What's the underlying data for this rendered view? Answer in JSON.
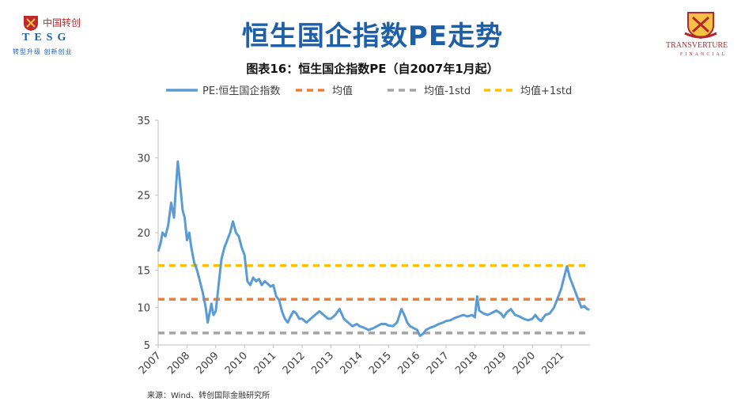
{
  "header": {
    "slide_title": "恒生国企指数PE走势",
    "chart_title": "图表16：恒生国企指数PE（自2007年1月起）",
    "title_color": "#1f5fa8"
  },
  "logos": {
    "left": {
      "cn": "中国转创",
      "en": "TESG",
      "slogan": "转型升级 创新创业"
    },
    "right": {
      "name": "TRANSVERTURE",
      "sub": "FINANCIAL"
    }
  },
  "source": "来源：Wind、转创国际金融研究所",
  "chart_data": {
    "type": "line",
    "title": "图表16：恒生国企指数PE（自2007年1月起）",
    "xlabel": "",
    "ylabel": "",
    "xlim": [
      2007,
      2022
    ],
    "ylim": [
      5,
      35
    ],
    "y_ticks": [
      5,
      10,
      15,
      20,
      25,
      30,
      35
    ],
    "x_ticks": [
      "2007",
      "2008",
      "2009",
      "2010",
      "2011",
      "2012",
      "2013",
      "2014",
      "2015",
      "2016",
      "2017",
      "2018",
      "2019",
      "2020",
      "2021"
    ],
    "legend_position": "top",
    "grid": false,
    "series": [
      {
        "name": "PE:恒生国企指数",
        "color": "#5b9bd5",
        "style": "solid",
        "x": [
          2007.0,
          2007.08,
          2007.15,
          2007.25,
          2007.35,
          2007.45,
          2007.55,
          2007.6,
          2007.68,
          2007.75,
          2007.8,
          2007.85,
          2007.92,
          2008.0,
          2008.08,
          2008.15,
          2008.25,
          2008.35,
          2008.45,
          2008.55,
          2008.65,
          2008.72,
          2008.8,
          2008.85,
          2008.92,
          2009.0,
          2009.1,
          2009.2,
          2009.3,
          2009.4,
          2009.5,
          2009.6,
          2009.7,
          2009.8,
          2009.9,
          2010.0,
          2010.1,
          2010.2,
          2010.3,
          2010.4,
          2010.5,
          2010.6,
          2010.7,
          2010.8,
          2010.9,
          2011.0,
          2011.1,
          2011.2,
          2011.3,
          2011.4,
          2011.5,
          2011.6,
          2011.7,
          2011.8,
          2011.9,
          2012.0,
          2012.15,
          2012.3,
          2012.45,
          2012.6,
          2012.75,
          2012.9,
          2013.0,
          2013.15,
          2013.3,
          2013.45,
          2013.6,
          2013.75,
          2013.9,
          2014.0,
          2014.15,
          2014.3,
          2014.45,
          2014.6,
          2014.75,
          2014.9,
          2015.0,
          2015.15,
          2015.3,
          2015.45,
          2015.55,
          2015.65,
          2015.75,
          2015.9,
          2016.0,
          2016.1,
          2016.2,
          2016.3,
          2016.45,
          2016.6,
          2016.75,
          2016.9,
          2017.0,
          2017.15,
          2017.3,
          2017.45,
          2017.6,
          2017.75,
          2017.9,
          2018.0,
          2018.08,
          2018.15,
          2018.3,
          2018.45,
          2018.6,
          2018.75,
          2018.9,
          2019.0,
          2019.1,
          2019.25,
          2019.4,
          2019.55,
          2019.7,
          2019.85,
          2020.0,
          2020.1,
          2020.2,
          2020.3,
          2020.45,
          2020.6,
          2020.75,
          2020.9,
          2021.0,
          2021.1,
          2021.2,
          2021.3,
          2021.4,
          2021.5,
          2021.6,
          2021.7,
          2021.8,
          2021.9,
          2021.98
        ],
        "values": [
          17.5,
          18.5,
          20.0,
          19.5,
          21.0,
          24.0,
          22.0,
          25.0,
          29.5,
          27.0,
          25.0,
          23.0,
          22.0,
          19.0,
          20.0,
          18.0,
          16.0,
          15.0,
          13.5,
          12.0,
          10.0,
          8.0,
          9.5,
          10.5,
          9.0,
          9.5,
          13.0,
          16.5,
          18.0,
          19.0,
          20.0,
          21.5,
          20.0,
          19.5,
          18.0,
          17.0,
          13.5,
          13.0,
          14.0,
          13.5,
          13.8,
          13.0,
          13.5,
          13.2,
          12.8,
          13.0,
          11.5,
          11.0,
          9.5,
          8.5,
          8.0,
          8.8,
          9.5,
          9.2,
          8.5,
          8.5,
          8.0,
          8.5,
          9.0,
          9.5,
          9.0,
          8.5,
          8.5,
          9.0,
          9.8,
          8.5,
          8.0,
          7.5,
          7.8,
          7.5,
          7.3,
          7.0,
          7.2,
          7.5,
          7.8,
          7.8,
          7.6,
          7.5,
          8.0,
          9.8,
          9.0,
          8.0,
          7.5,
          7.2,
          7.0,
          6.2,
          6.5,
          7.0,
          7.3,
          7.5,
          7.8,
          8.0,
          8.2,
          8.3,
          8.6,
          8.8,
          9.0,
          8.8,
          9.0,
          8.7,
          11.5,
          9.6,
          9.2,
          9.0,
          9.3,
          9.6,
          9.2,
          8.7,
          9.3,
          9.8,
          9.0,
          8.8,
          8.5,
          8.3,
          8.5,
          9.0,
          8.5,
          8.2,
          9.0,
          9.2,
          10.0,
          11.5,
          12.5,
          14.0,
          15.5,
          14.0,
          13.0,
          12.0,
          11.0,
          10.0,
          10.2,
          9.8,
          9.7
        ]
      },
      {
        "name": "均值",
        "color": "#ed7d31",
        "style": "dashed",
        "constant": 11.1
      },
      {
        "name": "均值-1std",
        "color": "#a5a5a5",
        "style": "dashed",
        "constant": 6.6
      },
      {
        "name": "均值+1std",
        "color": "#ffc000",
        "style": "dashed",
        "constant": 15.6
      }
    ]
  }
}
